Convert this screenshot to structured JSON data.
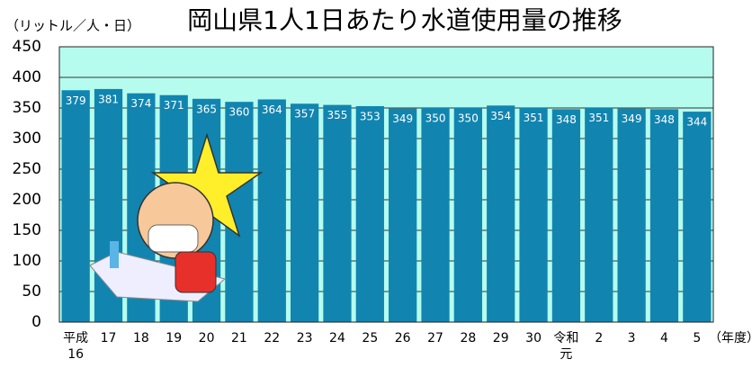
{
  "chart_data": {
    "type": "bar",
    "title": "岡山県1人1日あたり水道使用量の推移",
    "y_label": "（リットル／人・日）",
    "x_label": "（年度）",
    "categories": [
      "平成\n16",
      "17",
      "18",
      "19",
      "20",
      "21",
      "22",
      "23",
      "24",
      "25",
      "26",
      "27",
      "28",
      "29",
      "30",
      "令和\n元",
      "2",
      "3",
      "4",
      "5"
    ],
    "values": [
      379,
      381,
      374,
      371,
      365,
      360,
      364,
      357,
      355,
      353,
      349,
      350,
      350,
      354,
      351,
      348,
      351,
      349,
      348,
      344
    ],
    "color": "#1185b0",
    "ylim": [
      0,
      450
    ],
    "yticks": [
      0,
      50,
      100,
      150,
      200,
      250,
      300,
      350,
      400,
      450
    ],
    "grid": true
  }
}
